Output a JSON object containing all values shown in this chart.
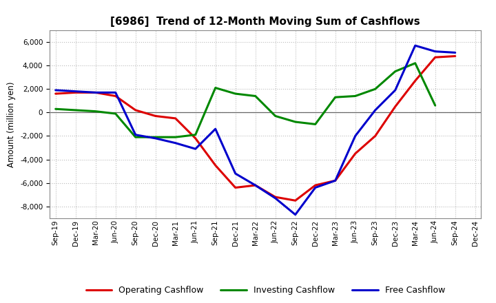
{
  "title": "[6986]  Trend of 12-Month Moving Sum of Cashflows",
  "ylabel": "Amount (million yen)",
  "ylim": [
    -9000,
    7000
  ],
  "yticks": [
    -8000,
    -6000,
    -4000,
    -2000,
    0,
    2000,
    4000,
    6000
  ],
  "x_labels": [
    "Sep-19",
    "Dec-19",
    "Mar-20",
    "Jun-20",
    "Sep-20",
    "Dec-20",
    "Mar-21",
    "Jun-21",
    "Sep-21",
    "Dec-21",
    "Mar-22",
    "Jun-22",
    "Sep-22",
    "Dec-22",
    "Mar-23",
    "Jun-23",
    "Sep-23",
    "Dec-23",
    "Mar-24",
    "Jun-24",
    "Sep-24",
    "Dec-24"
  ],
  "operating_cashflow": [
    1600,
    1700,
    1700,
    1400,
    200,
    -300,
    -500,
    -2200,
    -4500,
    -6400,
    -6200,
    -7200,
    -7500,
    -6200,
    -5800,
    -3500,
    -2000,
    500,
    2700,
    4700,
    4800,
    null
  ],
  "investing_cashflow": [
    300,
    200,
    100,
    -100,
    -2100,
    -2100,
    -2100,
    -1900,
    2100,
    1600,
    1400,
    -300,
    -800,
    -1000,
    1300,
    1400,
    2000,
    3500,
    4200,
    600,
    null,
    null
  ],
  "free_cashflow": [
    1900,
    1800,
    1700,
    1700,
    -1900,
    -2200,
    -2600,
    -3100,
    -1400,
    -5200,
    -6200,
    -7300,
    -8700,
    -6400,
    -5800,
    -2000,
    200,
    1900,
    5700,
    5200,
    5100,
    null
  ],
  "operating_color": "#dd0000",
  "investing_color": "#008800",
  "free_color": "#0000cc",
  "linewidth": 2.2,
  "grid_color": "#bbbbbb",
  "background_color": "#ffffff",
  "legend_labels": [
    "Operating Cashflow",
    "Investing Cashflow",
    "Free Cashflow"
  ],
  "title_fontsize": 11,
  "ylabel_fontsize": 8.5,
  "tick_fontsize": 7.5,
  "legend_fontsize": 9
}
